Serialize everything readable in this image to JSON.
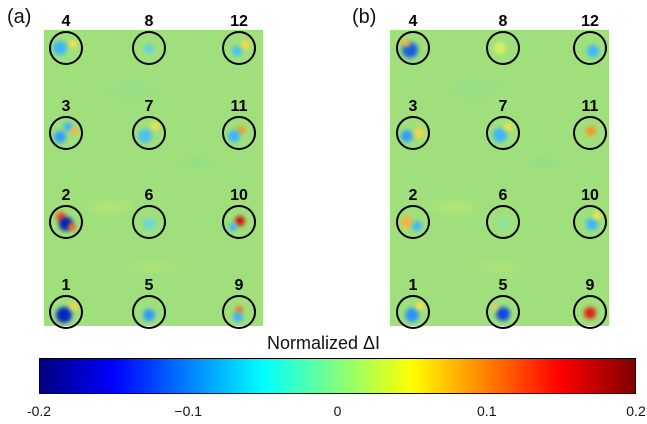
{
  "figure": {
    "panels": [
      {
        "label": "(a)",
        "spots": [
          {
            "id": "4",
            "blobs": [
              {
                "dx": -6,
                "dy": 0,
                "r": 7,
                "color": "#3ab4ff"
              },
              {
                "dx": 7,
                "dy": -4,
                "r": 4,
                "color": "#ffe04a"
              }
            ]
          },
          {
            "id": "8",
            "blobs": [
              {
                "dx": 0,
                "dy": 1,
                "r": 5,
                "color": "#62d2e8"
              }
            ]
          },
          {
            "id": "12",
            "blobs": [
              {
                "dx": 6,
                "dy": -3,
                "r": 5,
                "color": "#ffd24a"
              },
              {
                "dx": -2,
                "dy": 3,
                "r": 5,
                "color": "#3ec0ff"
              }
            ]
          },
          {
            "id": "3",
            "blobs": [
              {
                "dx": -6,
                "dy": 4,
                "r": 6,
                "color": "#2f9cff"
              },
              {
                "dx": 2,
                "dy": -6,
                "r": 5,
                "color": "#3ab8ff"
              },
              {
                "dx": 8,
                "dy": -2,
                "r": 4,
                "color": "#ffb040"
              }
            ]
          },
          {
            "id": "7",
            "blobs": [
              {
                "dx": -4,
                "dy": 3,
                "r": 7,
                "color": "#4cc0f0"
              },
              {
                "dx": 6,
                "dy": -7,
                "r": 4,
                "color": "#ffe04a"
              }
            ]
          },
          {
            "id": "11",
            "blobs": [
              {
                "dx": 2,
                "dy": -3,
                "r": 4,
                "color": "#ff9020"
              },
              {
                "dx": -5,
                "dy": 3,
                "r": 6,
                "color": "#3ab4ff"
              }
            ]
          },
          {
            "id": "2",
            "blobs": [
              {
                "dx": -5,
                "dy": -5,
                "r": 5,
                "color": "#ff4020"
              },
              {
                "dx": 0,
                "dy": 2,
                "r": 7,
                "color": "#0020b0"
              },
              {
                "dx": 6,
                "dy": 5,
                "r": 4,
                "color": "#ff6a20"
              }
            ]
          },
          {
            "id": "6",
            "blobs": [
              {
                "dx": 0,
                "dy": 2,
                "r": 6,
                "color": "#6ad8d8"
              }
            ]
          },
          {
            "id": "10",
            "blobs": [
              {
                "dx": 1,
                "dy": -1,
                "r": 5,
                "color": "#d01010"
              },
              {
                "dx": -6,
                "dy": 5,
                "r": 4,
                "color": "#3ab4ff"
              }
            ]
          },
          {
            "id": "1",
            "blobs": [
              {
                "dx": -2,
                "dy": 3,
                "r": 8,
                "color": "#0028c0"
              },
              {
                "dx": 8,
                "dy": -6,
                "r": 4,
                "color": "#ffd040"
              }
            ]
          },
          {
            "id": "5",
            "blobs": [
              {
                "dx": 0,
                "dy": 3,
                "r": 6,
                "color": "#2a9cff"
              }
            ]
          },
          {
            "id": "9",
            "blobs": [
              {
                "dx": 0,
                "dy": -2,
                "r": 4,
                "color": "#ff7020"
              },
              {
                "dx": -1,
                "dy": 5,
                "r": 5,
                "color": "#3ab0ff"
              }
            ]
          }
        ]
      },
      {
        "label": "(b)",
        "spots": [
          {
            "id": "4",
            "blobs": [
              {
                "dx": -3,
                "dy": 2,
                "r": 8,
                "color": "#1860e0"
              },
              {
                "dx": -7,
                "dy": -5,
                "r": 4,
                "color": "#ffb040"
              }
            ]
          },
          {
            "id": "8",
            "blobs": [
              {
                "dx": -3,
                "dy": 0,
                "r": 6,
                "color": "#dcee60"
              }
            ]
          },
          {
            "id": "12",
            "blobs": [
              {
                "dx": 3,
                "dy": 3,
                "r": 6,
                "color": "#3ab8ff"
              }
            ]
          },
          {
            "id": "3",
            "blobs": [
              {
                "dx": -6,
                "dy": 3,
                "r": 6,
                "color": "#2f9cff"
              },
              {
                "dx": 6,
                "dy": 0,
                "r": 5,
                "color": "#ffd040"
              }
            ]
          },
          {
            "id": "7",
            "blobs": [
              {
                "dx": -3,
                "dy": 2,
                "r": 7,
                "color": "#3ab4ff"
              },
              {
                "dx": 5,
                "dy": -6,
                "r": 4,
                "color": "#ffe04a"
              }
            ]
          },
          {
            "id": "11",
            "blobs": [
              {
                "dx": 1,
                "dy": -2,
                "r": 5,
                "color": "#ff9020"
              }
            ]
          },
          {
            "id": "2",
            "blobs": [
              {
                "dx": -6,
                "dy": 0,
                "r": 6,
                "color": "#ffb040"
              },
              {
                "dx": 4,
                "dy": 4,
                "r": 5,
                "color": "#3ab8ff"
              }
            ]
          },
          {
            "id": "6",
            "blobs": [
              {
                "dx": 1,
                "dy": 2,
                "r": 5,
                "color": "#8ce6a8"
              }
            ]
          },
          {
            "id": "10",
            "blobs": [
              {
                "dx": 2,
                "dy": 2,
                "r": 6,
                "color": "#3ab4ff"
              },
              {
                "dx": 7,
                "dy": -6,
                "r": 4,
                "color": "#ffe04a"
              }
            ]
          },
          {
            "id": "1",
            "blobs": [
              {
                "dx": -1,
                "dy": 3,
                "r": 7,
                "color": "#2a90ff"
              },
              {
                "dx": 7,
                "dy": -6,
                "r": 4,
                "color": "#ffe04a"
              }
            ]
          },
          {
            "id": "5",
            "blobs": [
              {
                "dx": 0,
                "dy": 2,
                "r": 7,
                "color": "#1048e0"
              },
              {
                "dx": -8,
                "dy": -4,
                "r": 3,
                "color": "#ffd040"
              }
            ]
          },
          {
            "id": "9",
            "blobs": [
              {
                "dx": 0,
                "dy": 1,
                "r": 6,
                "color": "#e02010"
              }
            ]
          }
        ]
      }
    ],
    "colorbar": {
      "title": "Normalized ΔI",
      "min": -0.2,
      "max": 0.2,
      "ticks": [
        {
          "value": -0.2,
          "label": "-0.2"
        },
        {
          "value": -0.1,
          "label": "−0.1"
        },
        {
          "value": 0,
          "label": "0"
        },
        {
          "value": 0.1,
          "label": "0.1"
        },
        {
          "value": 0.2,
          "label": "0.2"
        }
      ]
    }
  }
}
